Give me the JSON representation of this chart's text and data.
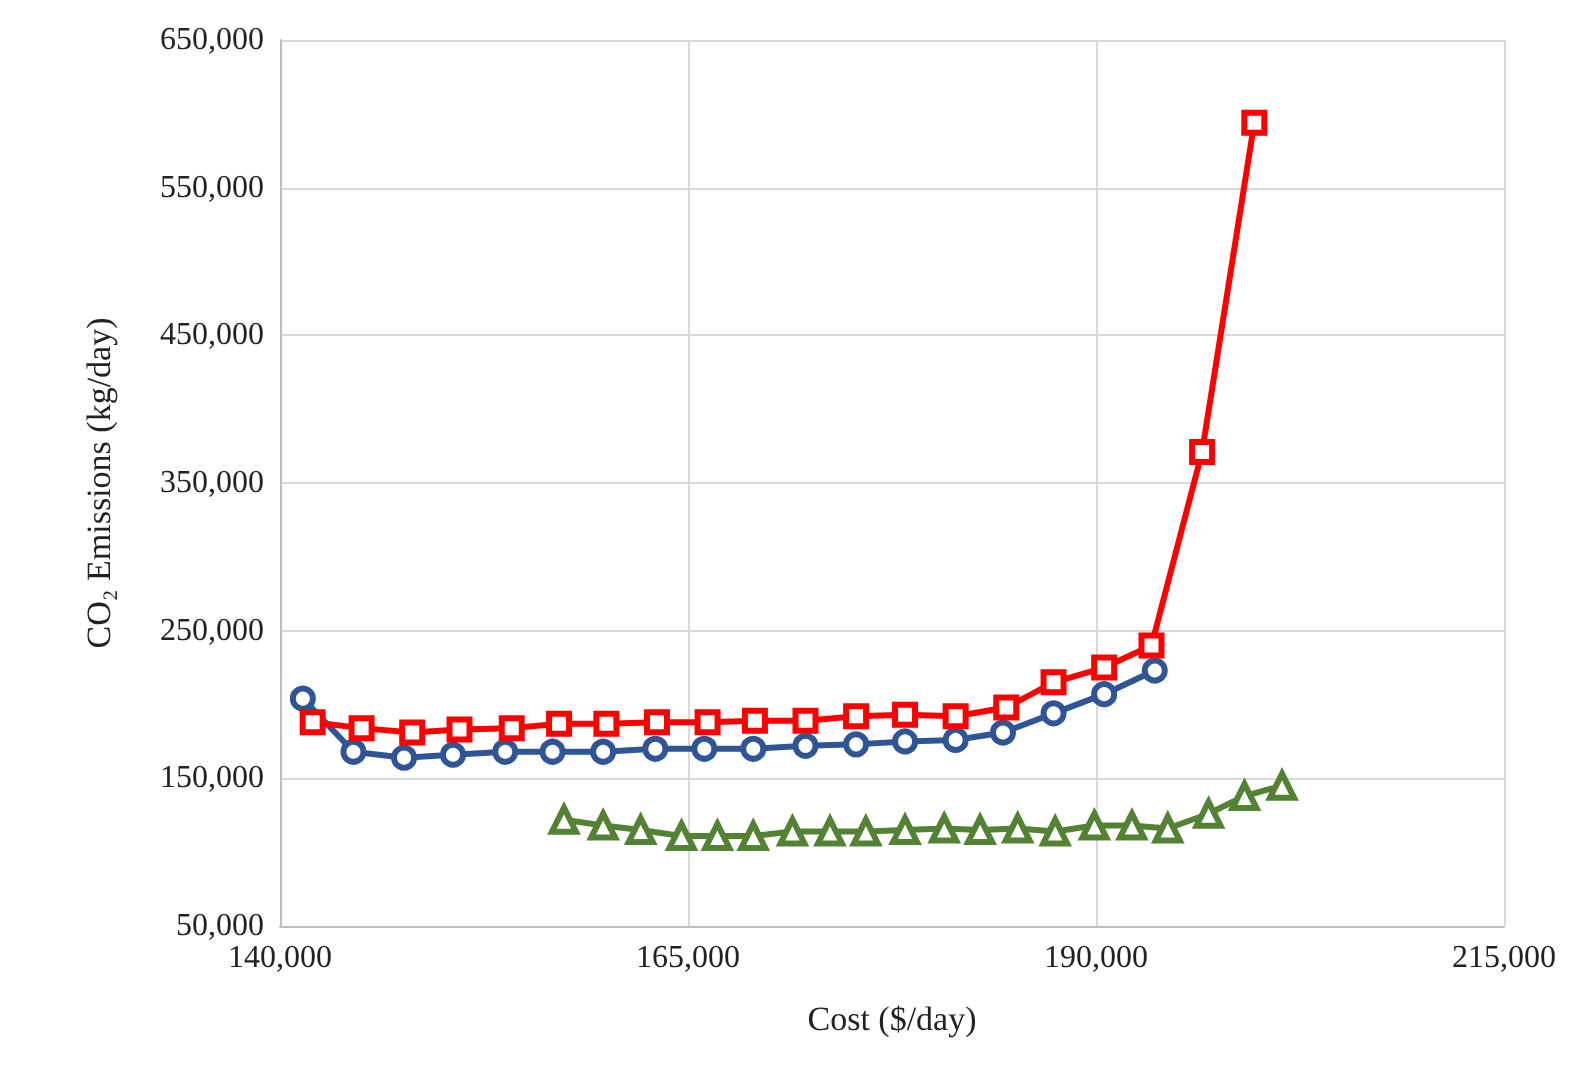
{
  "chart_data": {
    "type": "line",
    "xlabel": "Cost ($/day)",
    "ylabel": "CO₂ Emissions (kg/day)",
    "xlim": [
      140000,
      215000
    ],
    "xticks": [
      {
        "value": 140000,
        "label": "140,000"
      },
      {
        "value": 165000,
        "label": "165,000"
      },
      {
        "value": 190000,
        "label": "190,000"
      },
      {
        "value": 215000,
        "label": "215,000"
      }
    ],
    "ylim": [
      50000,
      650000
    ],
    "yticks": [
      {
        "value": 50000,
        "label": "50,000"
      },
      {
        "value": 150000,
        "label": "150,000"
      },
      {
        "value": 250000,
        "label": "250,000"
      },
      {
        "value": 350000,
        "label": "350,000"
      },
      {
        "value": 450000,
        "label": "450,000"
      },
      {
        "value": 550000,
        "label": "550,000"
      },
      {
        "value": 650000,
        "label": "650,000"
      }
    ],
    "grid": true,
    "line_style": "solid",
    "series": [
      {
        "color": "#2f5597",
        "marker": "circle",
        "x": [
          141400,
          144500,
          147600,
          150600,
          153800,
          156700,
          159800,
          163000,
          166000,
          169000,
          172200,
          175300,
          178300,
          181400,
          184300,
          187400,
          190500,
          193600
        ],
        "values": [
          204000,
          168000,
          164000,
          166000,
          168000,
          168000,
          168000,
          170000,
          170000,
          170000,
          172000,
          173000,
          175000,
          176000,
          181000,
          194000,
          207000,
          223000
        ]
      },
      {
        "color": "#ff0000",
        "marker": "square",
        "x": [
          142000,
          145000,
          148100,
          151000,
          154200,
          157100,
          160000,
          163100,
          166200,
          169100,
          172200,
          175300,
          178300,
          181400,
          184500,
          187400,
          190500,
          193400,
          196500,
          199700
        ],
        "values": [
          188000,
          184000,
          181000,
          183000,
          184000,
          187000,
          187000,
          188000,
          188000,
          189000,
          189000,
          192000,
          193000,
          192000,
          198000,
          215000,
          225000,
          240000,
          371000,
          594000
        ]
      },
      {
        "color": "#548235",
        "marker": "triangle",
        "x": [
          157400,
          159800,
          162100,
          164600,
          166800,
          169000,
          171400,
          173700,
          175900,
          178300,
          180700,
          182900,
          185200,
          187500,
          189900,
          192200,
          194400,
          196900,
          199100,
          201400
        ],
        "values": [
          122000,
          118000,
          115000,
          111000,
          111000,
          111000,
          114000,
          114000,
          114000,
          115000,
          116000,
          115000,
          116000,
          114000,
          118000,
          118000,
          116000,
          126000,
          138000,
          145000
        ]
      }
    ]
  }
}
